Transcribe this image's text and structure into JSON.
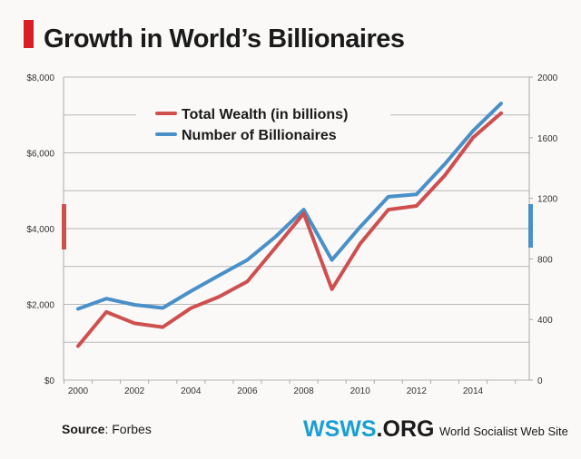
{
  "chart_data": {
    "type": "line",
    "title": "Growth in World’s Billionaires",
    "x": [
      2000,
      2001,
      2002,
      2003,
      2004,
      2005,
      2006,
      2007,
      2008,
      2009,
      2010,
      2011,
      2012,
      2013,
      2014,
      2015
    ],
    "x_tick_labels": [
      "2000",
      "2002",
      "2004",
      "2006",
      "2008",
      "2010",
      "2012",
      "2014"
    ],
    "y_left": {
      "range": [
        0,
        8000
      ],
      "tick_labels": [
        "$0",
        "$2,000",
        "$4,000",
        "$6,000",
        "$8,000"
      ]
    },
    "y_right": {
      "range": [
        0,
        2000
      ],
      "tick_labels": [
        "0",
        "400",
        "800",
        "1200",
        "1600",
        "2000"
      ]
    },
    "grid": true,
    "legend_position": "top-center",
    "series": [
      {
        "name": "Total Wealth (in billions)",
        "axis": "left",
        "color": "#cf4f4f",
        "values": [
          898,
          1800,
          1500,
          1400,
          1900,
          2200,
          2600,
          3500,
          4400,
          2400,
          3600,
          4500,
          4600,
          5400,
          6400,
          7050
        ]
      },
      {
        "name": "Number of Billionaires",
        "axis": "right",
        "color": "#4a90c8",
        "values": [
          470,
          538,
          497,
          476,
          587,
          691,
          793,
          946,
          1125,
          793,
          1011,
          1210,
          1226,
          1426,
          1645,
          1826
        ]
      }
    ]
  },
  "footer": {
    "source_label": "Source",
    "source_value": ": Forbes",
    "logo_wsws": "WSWS",
    "logo_org": ".ORG",
    "site_name": "World Socialist Web Site"
  },
  "colors": {
    "accent_red": "#d91f26",
    "logo_blue": "#1a9fd4"
  }
}
